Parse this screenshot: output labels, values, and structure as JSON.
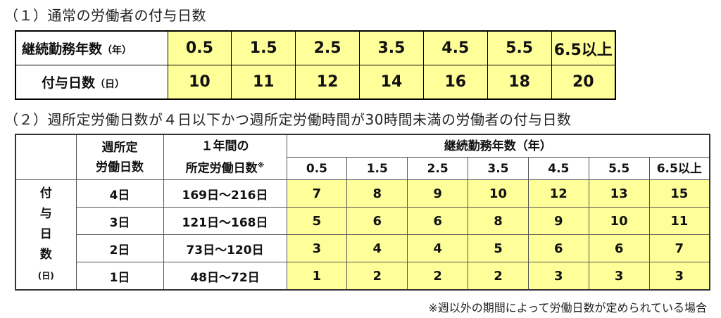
{
  "heading1": "（１）通常の労働者の付与日数",
  "table1": {
    "row1_label": "継続勤務年数",
    "row1_unit": "（年）",
    "years": [
      "0.5",
      "1.5",
      "2.5",
      "3.5",
      "4.5",
      "5.5",
      "6.5以上"
    ],
    "row2_label": "付与日数",
    "row2_unit": "（日）",
    "days": [
      "10",
      "11",
      "12",
      "14",
      "16",
      "18",
      "20"
    ]
  },
  "heading2": "（２）週所定労働日数が４日以下かつ週所定労働時間が30時間未満の労働者の付与日数",
  "table2": {
    "col_weekdays_1": "週所定",
    "col_weekdays_2": "労働日数",
    "col_annual_1": "１年間の",
    "col_annual_2": "所定労働日数",
    "col_annual_mark": "※",
    "years_header": "継続勤務年数（年）",
    "years": [
      "0.5",
      "1.5",
      "2.5",
      "3.5",
      "4.5",
      "5.5",
      "6.5以上"
    ],
    "side_label": [
      "付",
      "与",
      "日",
      "数"
    ],
    "side_unit": "(日)",
    "rows": [
      {
        "weekdays": "4日",
        "annual": "169日～216日",
        "days": [
          "7",
          "8",
          "9",
          "10",
          "12",
          "13",
          "15"
        ]
      },
      {
        "weekdays": "3日",
        "annual": "121日～168日",
        "days": [
          "5",
          "6",
          "6",
          "8",
          "9",
          "10",
          "11"
        ]
      },
      {
        "weekdays": "2日",
        "annual": "73日～120日",
        "days": [
          "3",
          "4",
          "4",
          "5",
          "6",
          "6",
          "7"
        ]
      },
      {
        "weekdays": "1日",
        "annual": "48日～72日",
        "days": [
          "1",
          "2",
          "2",
          "2",
          "3",
          "3",
          "3"
        ]
      }
    ]
  },
  "note": "※週以外の期間によって労働日数が定められている場合",
  "colors": {
    "highlight": "#ffff99",
    "border": "#000000"
  }
}
